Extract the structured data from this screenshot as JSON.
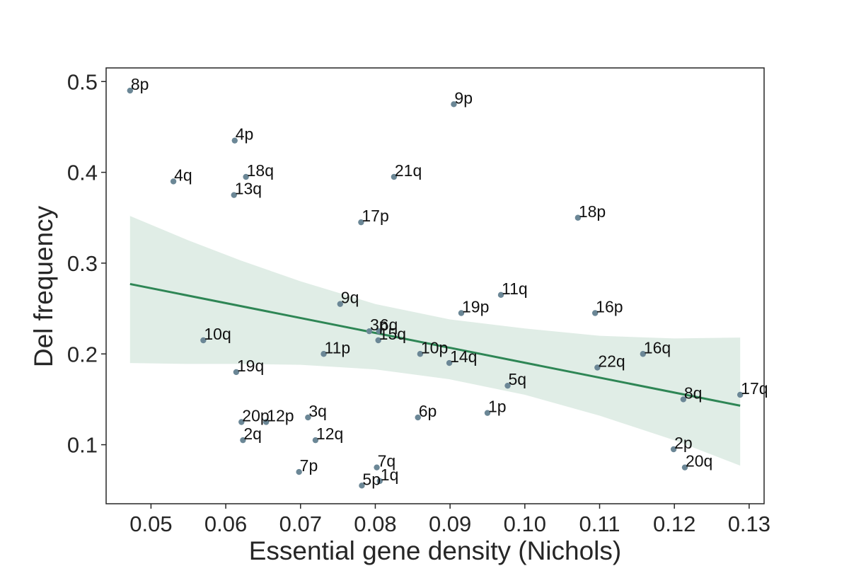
{
  "chart_data": {
    "type": "scatter",
    "title": "",
    "xlabel": "Essential gene density (Nichols)",
    "ylabel": "Del frequency",
    "xlim": [
      0.044,
      0.132
    ],
    "ylim": [
      0.035,
      0.515
    ],
    "xticks": [
      0.05,
      0.06,
      0.07,
      0.08,
      0.09,
      0.1,
      0.11,
      0.12,
      0.13
    ],
    "xtick_labels": [
      "0.05",
      "0.06",
      "0.07",
      "0.08",
      "0.09",
      "0.10",
      "0.11",
      "0.12",
      "0.13"
    ],
    "yticks": [
      0.1,
      0.2,
      0.3,
      0.4,
      0.5
    ],
    "ytick_labels": [
      "0.1",
      "0.2",
      "0.3",
      "0.4",
      "0.5"
    ],
    "grid": false,
    "legend": "none",
    "colors": {
      "point": "#6b8796",
      "line": "#2e8655",
      "band": "#2e8655"
    },
    "points": [
      {
        "label": "8p",
        "x": 0.0472,
        "y": 0.49
      },
      {
        "label": "9p",
        "x": 0.0905,
        "y": 0.475
      },
      {
        "label": "4p",
        "x": 0.0612,
        "y": 0.435
      },
      {
        "label": "4q",
        "x": 0.053,
        "y": 0.39
      },
      {
        "label": "18q",
        "x": 0.0627,
        "y": 0.395
      },
      {
        "label": "13q",
        "x": 0.0611,
        "y": 0.375
      },
      {
        "label": "21q",
        "x": 0.0825,
        "y": 0.395
      },
      {
        "label": "17p",
        "x": 0.0781,
        "y": 0.345
      },
      {
        "label": "18p",
        "x": 0.1071,
        "y": 0.35
      },
      {
        "label": "11q",
        "x": 0.0968,
        "y": 0.265
      },
      {
        "label": "9q",
        "x": 0.0753,
        "y": 0.255
      },
      {
        "label": "19p",
        "x": 0.0915,
        "y": 0.245
      },
      {
        "label": "16p",
        "x": 0.1094,
        "y": 0.245
      },
      {
        "label": "3p",
        "x": 0.0792,
        "y": 0.225
      },
      {
        "label": "6q",
        "x": 0.0805,
        "y": 0.225
      },
      {
        "label": "10q",
        "x": 0.057,
        "y": 0.215
      },
      {
        "label": "15q",
        "x": 0.0804,
        "y": 0.215
      },
      {
        "label": "11p",
        "x": 0.0731,
        "y": 0.2
      },
      {
        "label": "10p",
        "x": 0.086,
        "y": 0.2
      },
      {
        "label": "16q",
        "x": 0.1158,
        "y": 0.2
      },
      {
        "label": "14q",
        "x": 0.0899,
        "y": 0.19
      },
      {
        "label": "22q",
        "x": 0.1097,
        "y": 0.185
      },
      {
        "label": "19q",
        "x": 0.0614,
        "y": 0.18
      },
      {
        "label": "5q",
        "x": 0.0977,
        "y": 0.165
      },
      {
        "label": "8q",
        "x": 0.1212,
        "y": 0.15
      },
      {
        "label": "17q",
        "x": 0.1288,
        "y": 0.155
      },
      {
        "label": "1p",
        "x": 0.095,
        "y": 0.135
      },
      {
        "label": "3q",
        "x": 0.071,
        "y": 0.13
      },
      {
        "label": "6p",
        "x": 0.0857,
        "y": 0.13
      },
      {
        "label": "20p",
        "x": 0.0621,
        "y": 0.125
      },
      {
        "label": "12p",
        "x": 0.0654,
        "y": 0.125
      },
      {
        "label": "12q",
        "x": 0.072,
        "y": 0.105
      },
      {
        "label": "2q",
        "x": 0.0623,
        "y": 0.105
      },
      {
        "label": "2p",
        "x": 0.1199,
        "y": 0.095
      },
      {
        "label": "20q",
        "x": 0.1214,
        "y": 0.075
      },
      {
        "label": "7q",
        "x": 0.0802,
        "y": 0.075
      },
      {
        "label": "7p",
        "x": 0.0698,
        "y": 0.07
      },
      {
        "label": "1q",
        "x": 0.0806,
        "y": 0.06
      },
      {
        "label": "5p",
        "x": 0.0782,
        "y": 0.055
      }
    ],
    "regression": {
      "x": [
        0.0472,
        0.1288
      ],
      "y": [
        0.277,
        0.143
      ]
    },
    "confidence_band": {
      "x": [
        0.0472,
        0.055,
        0.062,
        0.07,
        0.08,
        0.09,
        0.1,
        0.11,
        0.12,
        0.1288
      ],
      "upper": [
        0.352,
        0.325,
        0.303,
        0.28,
        0.255,
        0.238,
        0.228,
        0.22,
        0.217,
        0.218
      ],
      "lower": [
        0.19,
        0.189,
        0.189,
        0.188,
        0.183,
        0.172,
        0.155,
        0.132,
        0.105,
        0.077
      ]
    }
  }
}
